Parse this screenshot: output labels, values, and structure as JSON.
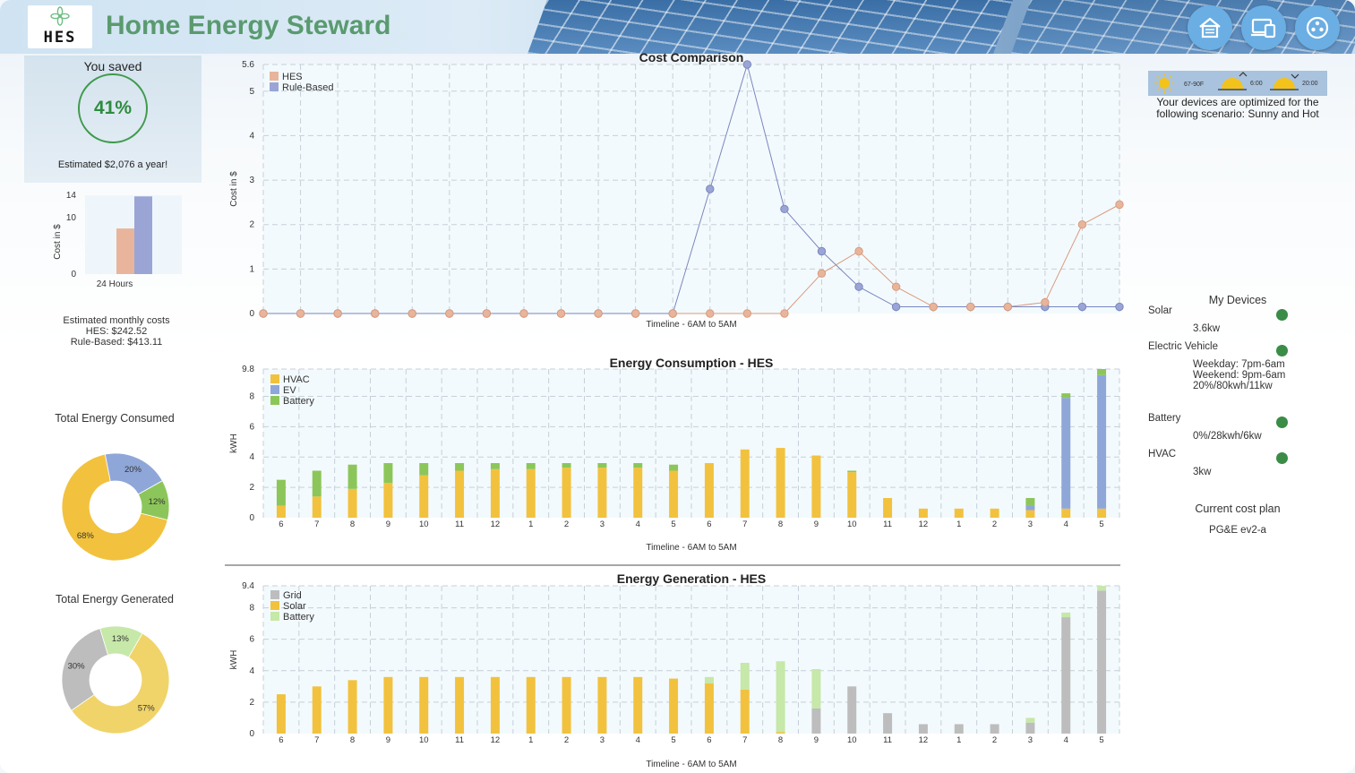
{
  "header": {
    "app_title": "Home Energy Steward",
    "logo_text": "HES",
    "nav": [
      {
        "icon": "house-icon",
        "name": "home-nav-button"
      },
      {
        "icon": "devices-icon",
        "name": "devices-nav-button"
      },
      {
        "icon": "dots-menu-icon",
        "name": "menu-nav-button"
      }
    ]
  },
  "savings": {
    "label": "You saved",
    "percent": "41%",
    "estimate": "Estimated $2,076 a year!"
  },
  "monthly": {
    "title": "Estimated monthly costs",
    "hes": "HES:  $242.52",
    "rule_based": "Rule-Based: $413.11"
  },
  "consumed_label": "Total Energy Consumed",
  "generated_label": "Total Energy Generated",
  "weather": {
    "temp": "67-90F",
    "sunrise": "6:00",
    "sunset": "20:00",
    "scenario": "Your devices are optimized for the following scenario: Sunny and Hot"
  },
  "devices": {
    "title": "My Devices",
    "items": [
      {
        "name": "Solar",
        "detail": [
          "3.6kw"
        ],
        "status_color": "#3a8c47"
      },
      {
        "name": "Electric Vehicle",
        "detail": [
          "Weekday: 7pm-6am",
          "Weekend: 9pm-6am",
          "20%/80kwh/11kw"
        ],
        "status_color": "#3a8c47"
      },
      {
        "name": "Battery",
        "detail": [
          "0%/28kwh/6kw"
        ],
        "status_color": "#3a8c47"
      },
      {
        "name": "HVAC",
        "detail": [
          "3kw"
        ],
        "status_color": "#3a8c47"
      }
    ],
    "cost_plan_title": "Current cost plan",
    "cost_plan": "PG&E ev2-a"
  },
  "colors": {
    "hes": "#e8b59c",
    "rule_based": "#9aa5d6",
    "hvac": "#f2c23e",
    "ev": "#8fa6d8",
    "battery_cons": "#8cc65a",
    "grid": "#bdbdbd",
    "solar": "#f2c23e",
    "battery_gen": "#c6e8a8",
    "accent_green": "#5a9a6f"
  },
  "chart_data": [
    {
      "id": "savings-bar",
      "type": "bar",
      "categories": [
        "24 Hours"
      ],
      "series": [
        {
          "values": [
            8.1
          ]
        },
        {
          "values": [
            13.8
          ]
        }
      ],
      "ylabel": "Cost in $",
      "yticks": [
        "0",
        "10",
        "14"
      ],
      "ylim": [
        0,
        14
      ]
    },
    {
      "id": "cost-comparison",
      "type": "line",
      "title": "Cost Comparison",
      "xlabel": "Timeline - 6AM to 5AM",
      "ylabel": "Cost in $",
      "ylim": [
        0,
        5.6
      ],
      "yticks": [
        "0",
        "1",
        "2",
        "3",
        "4",
        "5",
        "5.6"
      ],
      "grid": true,
      "legend": "top-left",
      "series": [
        {
          "name": "HES",
          "values": [
            0,
            0,
            0,
            0,
            0,
            0,
            0,
            0,
            0,
            0,
            0,
            0,
            0,
            0,
            0,
            0.9,
            1.4,
            0.6,
            0.15,
            0.15,
            0.15,
            0.25,
            2.0,
            2.45
          ]
        },
        {
          "name": "Rule-Based",
          "values": [
            0,
            0,
            0,
            0,
            0,
            0,
            0,
            0,
            0,
            0,
            0,
            0,
            2.8,
            5.6,
            2.35,
            1.4,
            0.6,
            0.15,
            0.15,
            0.15,
            0.15,
            0.15,
            0.15,
            0.15
          ]
        }
      ]
    },
    {
      "id": "energy-consumption",
      "type": "bar",
      "title": "Energy Consumption - HES",
      "xlabel": "Timeline - 6AM to 5AM",
      "ylabel": "kWH",
      "categories": [
        "6",
        "7",
        "8",
        "9",
        "10",
        "11",
        "12",
        "1",
        "2",
        "3",
        "4",
        "5",
        "6",
        "7",
        "8",
        "9",
        "10",
        "11",
        "12",
        "1",
        "2",
        "3",
        "4",
        "5"
      ],
      "ylim": [
        0,
        9.8
      ],
      "yticks": [
        "0",
        "2",
        "4",
        "6",
        "8",
        "9.8"
      ],
      "legend": "top-left",
      "series": [
        {
          "name": "HVAC",
          "values": [
            0.8,
            1.4,
            1.9,
            2.3,
            2.8,
            3.1,
            3.2,
            3.2,
            3.3,
            3.3,
            3.3,
            3.1,
            3.6,
            4.5,
            4.6,
            4.1,
            3.0,
            1.3,
            0.6,
            0.6,
            0.6,
            0.5,
            0.6,
            0.6
          ]
        },
        {
          "name": "EV",
          "values": [
            0,
            0,
            0,
            0,
            0,
            0,
            0,
            0,
            0,
            0,
            0,
            0,
            0,
            0,
            0,
            0,
            0,
            0,
            0,
            0,
            0,
            0.3,
            7.3,
            8.8
          ]
        },
        {
          "name": "Battery",
          "values": [
            1.7,
            1.7,
            1.6,
            1.3,
            0.8,
            0.5,
            0.4,
            0.4,
            0.3,
            0.3,
            0.3,
            0.4,
            0,
            0,
            0,
            0,
            0.1,
            0,
            0,
            0,
            0,
            0.5,
            0.3,
            0.4
          ]
        }
      ]
    },
    {
      "id": "energy-generation",
      "type": "bar",
      "title": "Energy Generation  -  HES",
      "xlabel": "Timeline - 6AM to 5AM",
      "ylabel": "kWH",
      "categories": [
        "6",
        "7",
        "8",
        "9",
        "10",
        "11",
        "12",
        "1",
        "2",
        "3",
        "4",
        "5",
        "6",
        "7",
        "8",
        "9",
        "10",
        "11",
        "12",
        "1",
        "2",
        "3",
        "4",
        "5"
      ],
      "ylim": [
        0,
        9.4
      ],
      "yticks": [
        "0",
        "2",
        "4",
        "6",
        "8",
        "9.4"
      ],
      "legend": "top-left",
      "series": [
        {
          "name": "Grid",
          "values": [
            0,
            0,
            0,
            0,
            0,
            0,
            0,
            0,
            0,
            0,
            0,
            0,
            0,
            0,
            0,
            1.6,
            3.0,
            1.3,
            0.6,
            0.6,
            0.6,
            0.7,
            7.4,
            9.1
          ]
        },
        {
          "name": "Solar",
          "values": [
            2.5,
            3.0,
            3.4,
            3.6,
            3.6,
            3.6,
            3.6,
            3.6,
            3.6,
            3.6,
            3.6,
            3.5,
            3.2,
            2.8,
            0.1,
            0,
            0,
            0,
            0,
            0,
            0,
            0,
            0,
            0
          ]
        },
        {
          "name": "Battery",
          "values": [
            0,
            0,
            0,
            0,
            0,
            0,
            0,
            0,
            0,
            0,
            0,
            0,
            0.4,
            1.7,
            4.5,
            2.5,
            0,
            0,
            0,
            0,
            0,
            0.3,
            0.3,
            0.3
          ]
        }
      ]
    },
    {
      "id": "total-consumed",
      "type": "pie",
      "labels": [
        "",
        "",
        ""
      ],
      "values": [
        68,
        20,
        12
      ],
      "value_labels": [
        "68%",
        "20%",
        "12%"
      ]
    },
    {
      "id": "total-generated",
      "type": "pie",
      "labels": [
        "",
        "",
        ""
      ],
      "values": [
        57,
        30,
        13
      ],
      "value_labels": [
        "57%",
        "30%",
        "13%"
      ]
    }
  ]
}
